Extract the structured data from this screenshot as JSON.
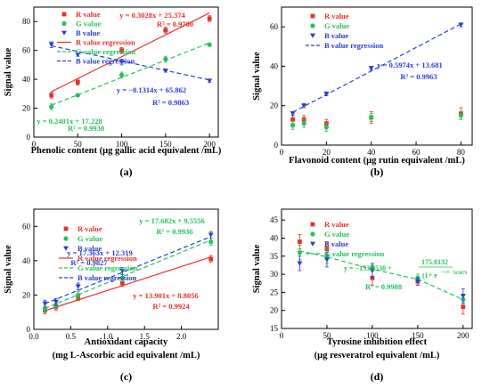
{
  "figure": {
    "colors": {
      "R": "#e8302a",
      "G": "#22c45a",
      "B": "#2a3fd0",
      "axis": "#000000"
    }
  },
  "chart_data": [
    {
      "panel": "(a)",
      "type": "scatter",
      "xlabel": "Phenolic content (µg gallic acid equivalent /mL)",
      "ylabel": "Signal value",
      "xlim": [
        0,
        210
      ],
      "ylim": [
        0,
        90
      ],
      "xticks": [
        0,
        50,
        100,
        150,
        200
      ],
      "yticks": [
        0,
        20,
        40,
        60,
        80
      ],
      "legend_position": "top-left",
      "grid": false,
      "series": [
        {
          "key": "R",
          "name": "R value",
          "marker": "square",
          "x": [
            20,
            50,
            100,
            150,
            200
          ],
          "y": [
            29,
            38,
            60,
            74,
            82
          ],
          "err": [
            2,
            2,
            2,
            2,
            2
          ]
        },
        {
          "key": "G",
          "name": "G value",
          "marker": "circle",
          "x": [
            20,
            50,
            100,
            150,
            200
          ],
          "y": [
            21,
            29,
            43,
            54,
            64
          ],
          "err": [
            2,
            1,
            2,
            2,
            1
          ]
        },
        {
          "key": "B",
          "name": "B value",
          "marker": "triangle-down",
          "x": [
            20,
            50,
            100,
            150,
            200
          ],
          "y": [
            64,
            57,
            52,
            46,
            39
          ],
          "err": [
            2,
            1,
            2,
            1,
            1
          ]
        }
      ],
      "regressions": [
        {
          "key": "R",
          "name": "R value regression",
          "style": "solid",
          "slope": 0.3028,
          "intercept": 25.374,
          "x_range": [
            20,
            200
          ],
          "equation": "y = 0.3028x + 25.374",
          "r2": "R² = 0.9700"
        },
        {
          "key": "G",
          "name": "G value regression",
          "style": "dashed",
          "slope": 0.2401,
          "intercept": 17.228,
          "x_range": [
            20,
            200
          ],
          "equation": "y = 0.2401x + 17.228",
          "r2": "R² = 0.9930"
        },
        {
          "key": "B",
          "name": "B value regression",
          "style": "dashed",
          "slope": -0.1314,
          "intercept": 65.862,
          "x_range": [
            20,
            200
          ],
          "equation": "y = −0.1314x + 65.862",
          "r2": "R² = 0.9863"
        }
      ]
    },
    {
      "panel": "(b)",
      "type": "scatter",
      "xlabel": "Flavonoid content (µg rutin equivalent /mL)",
      "ylabel": "Signal value",
      "xlim": [
        0,
        85
      ],
      "ylim": [
        0,
        70
      ],
      "xticks": [
        0,
        20,
        40,
        60,
        80
      ],
      "yticks": [
        0,
        20,
        40,
        60
      ],
      "legend_position": "top-left",
      "grid": false,
      "series": [
        {
          "key": "R",
          "name": "R value",
          "marker": "square",
          "x": [
            5,
            10,
            20,
            40,
            80
          ],
          "y": [
            13,
            13,
            11,
            14,
            16
          ],
          "err": [
            2,
            2,
            2,
            3,
            3
          ]
        },
        {
          "key": "G",
          "name": "G value",
          "marker": "circle",
          "x": [
            5,
            10,
            20,
            40,
            80
          ],
          "y": [
            10,
            11,
            9,
            14,
            15
          ],
          "err": [
            2,
            2,
            2,
            2,
            2
          ]
        },
        {
          "key": "B",
          "name": "B value",
          "marker": "triangle-down",
          "x": [
            5,
            10,
            20,
            40,
            80
          ],
          "y": [
            16,
            20,
            26,
            39,
            61
          ],
          "err": [
            1,
            1,
            1,
            1,
            1
          ]
        }
      ],
      "regressions": [
        {
          "key": "B",
          "name": "B value regression",
          "style": "dashed",
          "slope": 0.5974,
          "intercept": 13.681,
          "x_range": [
            5,
            80
          ],
          "equation": "y = 0.5974x + 13.681",
          "r2": "R² = 0.9963"
        }
      ]
    },
    {
      "panel": "(c)",
      "type": "scatter",
      "xlabel": "Antioxidant capacity",
      "xlabel2": "(mg L-Ascorbic acid equivalent /mL)",
      "ylabel": "Signal value",
      "xlim": [
        0,
        2.5
      ],
      "ylim": [
        0,
        70
      ],
      "xticks": [
        0,
        0.5,
        1.0,
        1.5,
        2.0
      ],
      "yticks": [
        0,
        20,
        40,
        60
      ],
      "legend_position": "top-left",
      "grid": false,
      "series": [
        {
          "key": "R",
          "name": "R value",
          "marker": "square",
          "x": [
            0.15,
            0.3,
            0.6,
            1.2,
            2.4
          ],
          "y": [
            11,
            13,
            18,
            27,
            41
          ],
          "err": [
            2,
            2,
            1,
            2,
            2
          ]
        },
        {
          "key": "G",
          "name": "G value",
          "marker": "circle",
          "x": [
            0.15,
            0.3,
            0.6,
            1.2,
            2.4
          ],
          "y": [
            12,
            14,
            20,
            30,
            51
          ],
          "err": [
            2,
            2,
            2,
            2,
            2
          ]
        },
        {
          "key": "B",
          "name": "B value",
          "marker": "triangle-down",
          "x": [
            0.15,
            0.3,
            0.6,
            1.2,
            2.4
          ],
          "y": [
            15,
            16,
            25,
            34,
            55
          ],
          "err": [
            2,
            2,
            2,
            2,
            2
          ]
        }
      ],
      "regressions": [
        {
          "key": "R",
          "name": "R value regression",
          "style": "solid",
          "slope": 13.901,
          "intercept": 8.8056,
          "x_range": [
            0.15,
            2.4
          ],
          "equation": "y = 13.901x + 8.8056",
          "r2": "R² = 0.9924"
        },
        {
          "key": "G",
          "name": "G value regression",
          "style": "dashed",
          "slope": 17.682,
          "intercept": 9.5556,
          "x_range": [
            0.15,
            2.4
          ],
          "equation": "y = 17.682x + 9.5556",
          "r2": "R² = 0.9936"
        },
        {
          "key": "B",
          "name": "B value regression",
          "style": "dashed",
          "slope": 17.363,
          "intercept": 12.319,
          "x_range": [
            0.15,
            2.4
          ],
          "equation": "y = 17.363x + 12.319",
          "r2": "R² = 0.9827"
        }
      ]
    },
    {
      "panel": "(d)",
      "type": "scatter",
      "xlabel": "Tyrosine inhibition effect",
      "xlabel2": "(µg resveratrol equivalent /mL)",
      "ylabel": "Signal value",
      "xlim": [
        0,
        210
      ],
      "ylim": [
        15,
        48
      ],
      "xticks": [
        0,
        50,
        100,
        150,
        200
      ],
      "yticks": [
        15,
        20,
        25,
        30,
        35,
        40,
        45
      ],
      "legend_position": "top-left",
      "grid": false,
      "series": [
        {
          "key": "R",
          "name": "R value",
          "marker": "square",
          "x": [
            20,
            50,
            100,
            150,
            200
          ],
          "y": [
            39,
            37,
            29,
            28,
            21
          ],
          "err": [
            2,
            2,
            2,
            1,
            2
          ]
        },
        {
          "key": "G",
          "name": "G value",
          "marker": "circle",
          "x": [
            20,
            50,
            100,
            150,
            200
          ],
          "y": [
            36,
            35,
            32,
            29,
            23
          ],
          "err": [
            2,
            2,
            1,
            1,
            1
          ]
        },
        {
          "key": "B",
          "name": "B value",
          "marker": "triangle-down",
          "x": [
            20,
            50,
            100,
            150,
            200
          ],
          "y": [
            33,
            34,
            31,
            28,
            24
          ],
          "err": [
            2,
            2,
            2,
            1,
            2
          ]
        }
      ],
      "regressions": [
        {
          "key": "G",
          "name": "G value regression",
          "style": "dashed",
          "curve": "logistic",
          "points_x": [
            20,
            50,
            100,
            150,
            200
          ],
          "points_y": [
            36.5,
            34.8,
            31.4,
            28.6,
            23.0
          ]
        }
      ],
      "equation_d": {
        "main": "y = −133.8530 + ",
        "numerator": "175.0132",
        "exponent": "−3.49…",
        "denom_prefix": "(1+ e",
        "power": "78.9879",
        "r2": "R² = 0.9988"
      }
    }
  ]
}
